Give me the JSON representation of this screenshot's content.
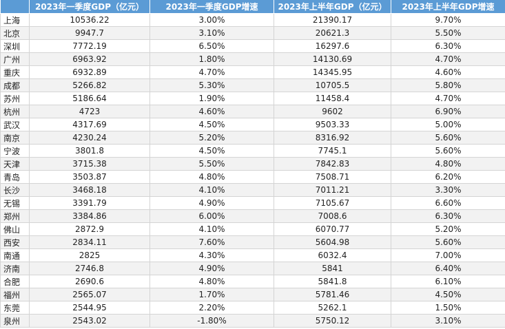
{
  "headers": [
    "",
    "2023年一季度GDP（亿元）",
    "2023年一季度GDP增速",
    "2023年上半年GDP（亿元）",
    "2023年上半年GDP增速"
  ],
  "rows": [
    [
      "上海",
      "10536.22",
      "3.00%",
      "21390.17",
      "9.70%"
    ],
    [
      "北京",
      "9947.7",
      "3.10%",
      "20621.3",
      "5.50%"
    ],
    [
      "深圳",
      "7772.19",
      "6.50%",
      "16297.6",
      "6.30%"
    ],
    [
      "广州",
      "6963.92",
      "1.80%",
      "14130.69",
      "4.70%"
    ],
    [
      "重庆",
      "6932.89",
      "4.70%",
      "14345.95",
      "4.60%"
    ],
    [
      "成都",
      "5266.82",
      "5.30%",
      "10705.5",
      "5.80%"
    ],
    [
      "苏州",
      "5186.64",
      "1.90%",
      "11458.4",
      "4.70%"
    ],
    [
      "杭州",
      "4723",
      "4.60%",
      "9602",
      "6.90%"
    ],
    [
      "武汉",
      "4317.69",
      "4.50%",
      "9503.33",
      "5.00%"
    ],
    [
      "南京",
      "4230.24",
      "5.20%",
      "8316.92",
      "5.60%"
    ],
    [
      "宁波",
      "3801.8",
      "4.50%",
      "7745.1",
      "5.60%"
    ],
    [
      "天津",
      "3715.38",
      "5.50%",
      "7842.83",
      "4.80%"
    ],
    [
      "青岛",
      "3503.87",
      "4.80%",
      "7508.71",
      "6.20%"
    ],
    [
      "长沙",
      "3468.18",
      "4.10%",
      "7011.21",
      "3.30%"
    ],
    [
      "无锡",
      "3391.79",
      "4.90%",
      "7105.67",
      "6.60%"
    ],
    [
      "郑州",
      "3384.86",
      "6.00%",
      "7008.6",
      "6.30%"
    ],
    [
      "佛山",
      "2872.9",
      "4.10%",
      "6070.77",
      "5.20%"
    ],
    [
      "西安",
      "2834.11",
      "7.60%",
      "5604.98",
      "5.60%"
    ],
    [
      "南通",
      "2825",
      "4.30%",
      "6032.4",
      "7.00%"
    ],
    [
      "济南",
      "2746.8",
      "4.90%",
      "5841",
      "6.40%"
    ],
    [
      "合肥",
      "2690.6",
      "4.80%",
      "5841.8",
      "6.10%"
    ],
    [
      "福州",
      "2565.07",
      "1.70%",
      "5781.46",
      "4.50%"
    ],
    [
      "东莞",
      "2544.95",
      "2.20%",
      "5262.1",
      "1.50%"
    ],
    [
      "泉州",
      "2543.02",
      "-1.80%",
      "5750.12",
      "3.10%"
    ]
  ]
}
